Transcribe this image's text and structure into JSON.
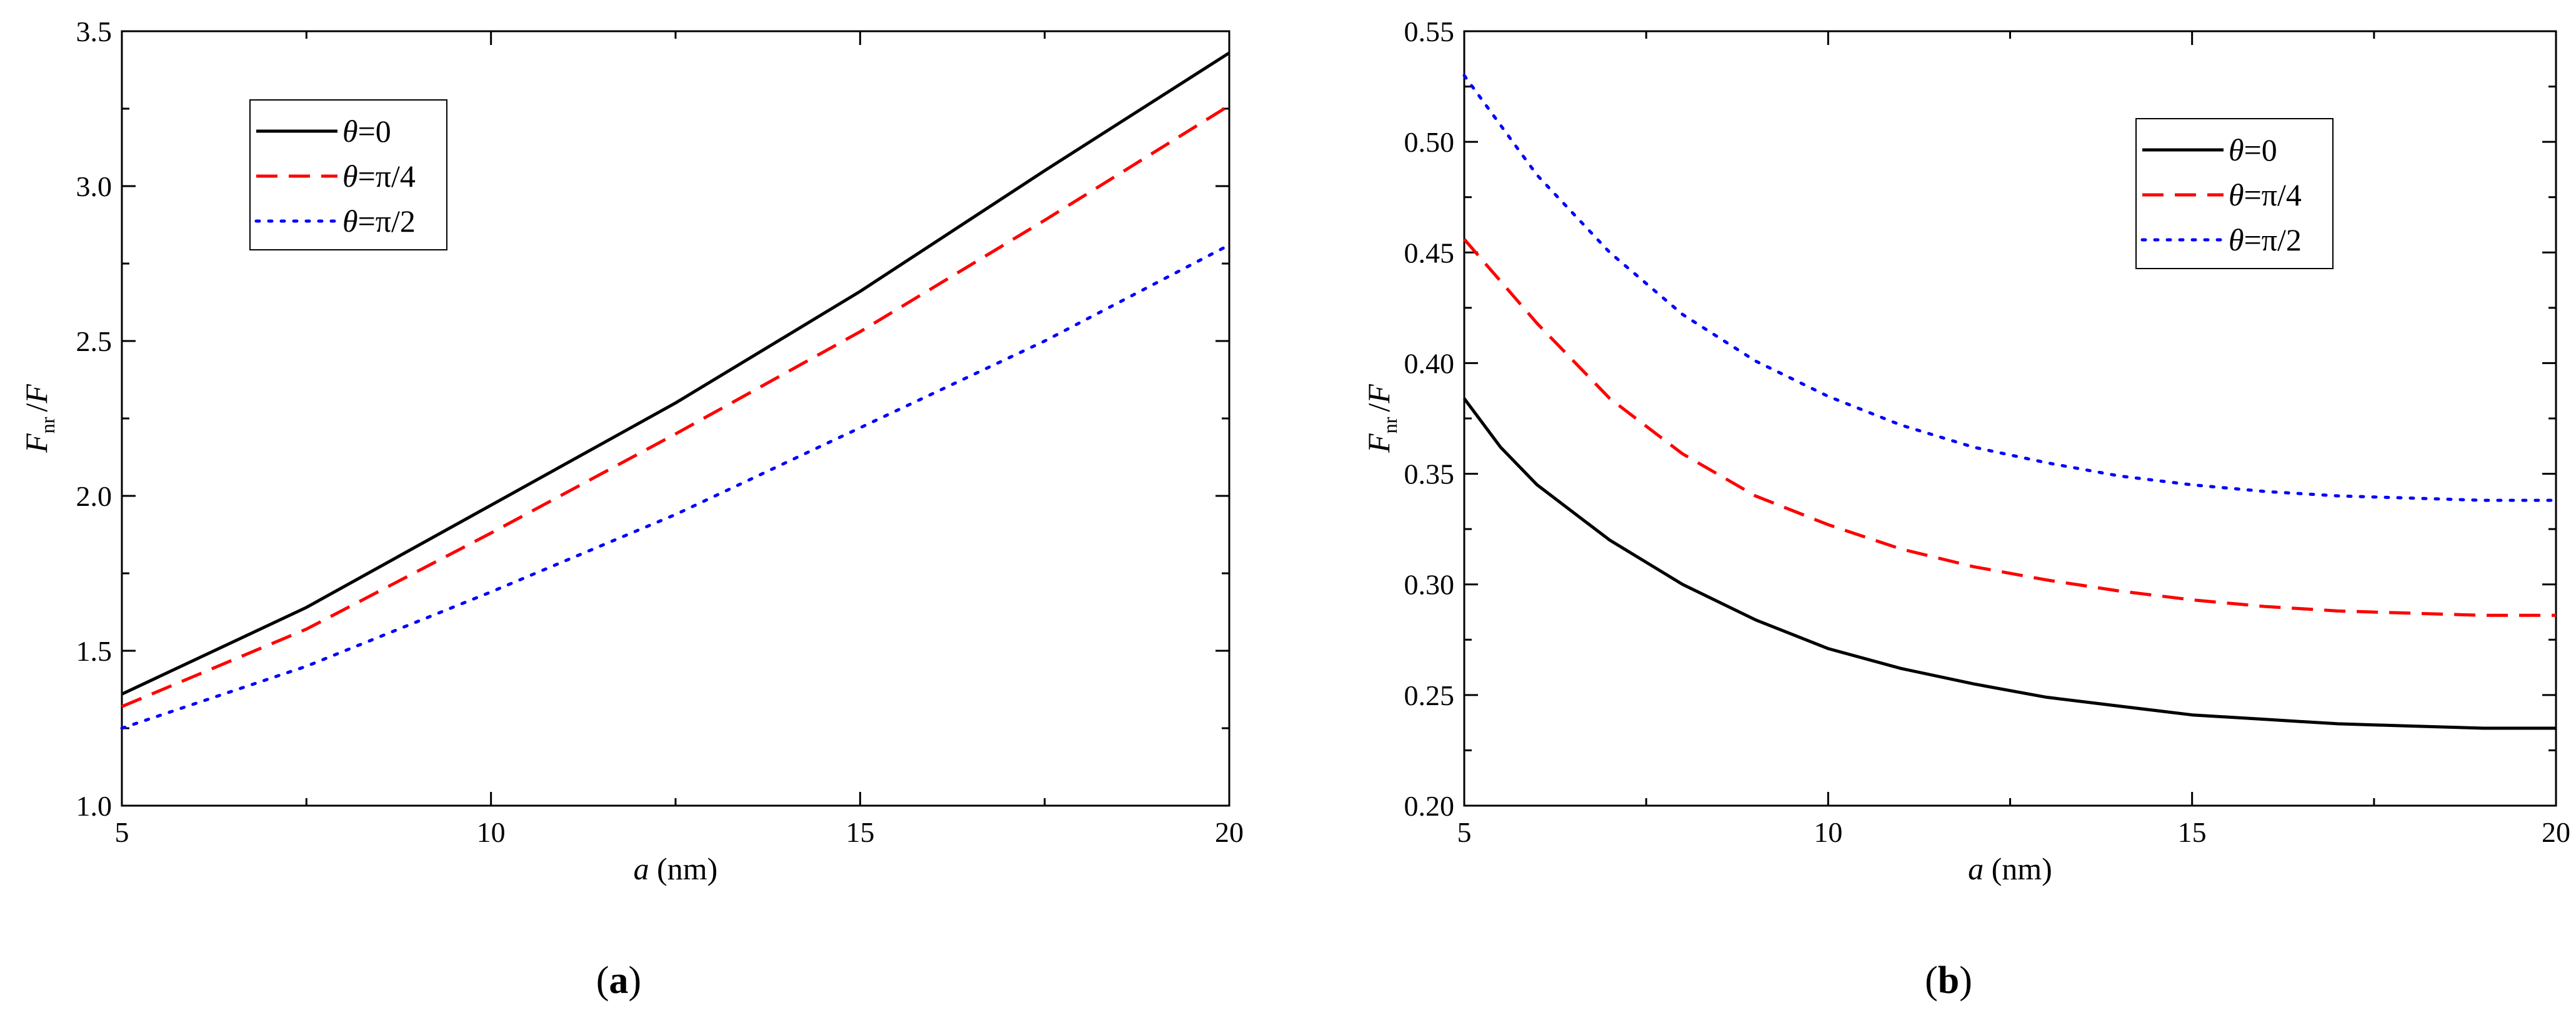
{
  "panels": [
    {
      "paren_open": "(",
      "letter": "a",
      "paren_close": ")"
    },
    {
      "paren_open": "(",
      "letter": "b",
      "paren_close": ")"
    }
  ],
  "chart_data": [
    {
      "type": "line",
      "title": "",
      "xlabel_italic": "a",
      "xlabel_rest": " (nm)",
      "ylabel_main": "F",
      "ylabel_sub": "nr",
      "ylabel_rest": "/F",
      "xlim": [
        5,
        20
      ],
      "ylim": [
        1.0,
        3.5
      ],
      "xticks": [
        5,
        10,
        15,
        20
      ],
      "xtick_labels": [
        "5",
        "10",
        "15",
        "20"
      ],
      "yticks": [
        1.0,
        1.5,
        2.0,
        2.5,
        3.0,
        3.5
      ],
      "ytick_labels": [
        "1.0",
        "1.5",
        "2.0",
        "2.5",
        "3.0",
        "3.5"
      ],
      "legend_position": "top-left",
      "grid": false,
      "series": [
        {
          "name_italic": "θ",
          "name_rest": "=0",
          "color": "#000000",
          "dash": "solid",
          "x": [
            5,
            7.5,
            10,
            12.5,
            15,
            17.5,
            20
          ],
          "y": [
            1.36,
            1.64,
            1.97,
            2.3,
            2.66,
            3.05,
            3.43
          ]
        },
        {
          "name_italic": "θ",
          "name_rest": "=π/4",
          "color": "#ff0000",
          "dash": "dashed",
          "x": [
            5,
            7.5,
            10,
            12.5,
            15,
            17.5,
            20
          ],
          "y": [
            1.32,
            1.57,
            1.88,
            2.2,
            2.53,
            2.89,
            3.26
          ]
        },
        {
          "name_italic": "θ",
          "name_rest": "=π/2",
          "color": "#0000ff",
          "dash": "dotted",
          "x": [
            5,
            7.5,
            10,
            12.5,
            15,
            17.5,
            20
          ],
          "y": [
            1.25,
            1.45,
            1.69,
            1.94,
            2.22,
            2.5,
            2.81
          ]
        }
      ]
    },
    {
      "type": "line",
      "title": "",
      "xlabel_italic": "a",
      "xlabel_rest": " (nm)",
      "ylabel_main": "F",
      "ylabel_sub": "nr",
      "ylabel_rest": "/F",
      "xlim": [
        5,
        20
      ],
      "ylim": [
        0.2,
        0.55
      ],
      "xticks": [
        5,
        10,
        15,
        20
      ],
      "xtick_labels": [
        "5",
        "10",
        "15",
        "20"
      ],
      "yticks": [
        0.2,
        0.25,
        0.3,
        0.35,
        0.4,
        0.45,
        0.5,
        0.55
      ],
      "ytick_labels": [
        "0.20",
        "0.25",
        "0.30",
        "0.35",
        "0.40",
        "0.45",
        "0.50",
        "0.55"
      ],
      "legend_position": "top-right",
      "grid": false,
      "series": [
        {
          "name_italic": "θ",
          "name_rest": "=0",
          "color": "#000000",
          "dash": "solid",
          "x": [
            5,
            5.5,
            6,
            7,
            8,
            9,
            10,
            11,
            12,
            13,
            14,
            15,
            16,
            17,
            18,
            19,
            20
          ],
          "y": [
            0.384,
            0.362,
            0.345,
            0.32,
            0.3,
            0.284,
            0.271,
            0.262,
            0.255,
            0.249,
            0.245,
            0.241,
            0.239,
            0.237,
            0.236,
            0.235,
            0.235
          ]
        },
        {
          "name_italic": "θ",
          "name_rest": "=π/4",
          "color": "#ff0000",
          "dash": "dashed",
          "x": [
            5,
            6,
            7,
            8,
            9,
            10,
            11,
            12,
            13,
            14,
            15,
            16,
            17,
            18,
            19,
            20
          ],
          "y": [
            0.456,
            0.418,
            0.384,
            0.359,
            0.34,
            0.327,
            0.316,
            0.308,
            0.302,
            0.297,
            0.293,
            0.29,
            0.288,
            0.287,
            0.286,
            0.286
          ]
        },
        {
          "name_italic": "θ",
          "name_rest": "=π/2",
          "color": "#0000ff",
          "dash": "dotted",
          "x": [
            5,
            6,
            7,
            8,
            9,
            10,
            11,
            12,
            13,
            14,
            15,
            16,
            17,
            18,
            19,
            20
          ],
          "y": [
            0.53,
            0.485,
            0.45,
            0.422,
            0.401,
            0.385,
            0.372,
            0.362,
            0.355,
            0.349,
            0.345,
            0.342,
            0.34,
            0.339,
            0.338,
            0.338
          ]
        }
      ]
    }
  ]
}
